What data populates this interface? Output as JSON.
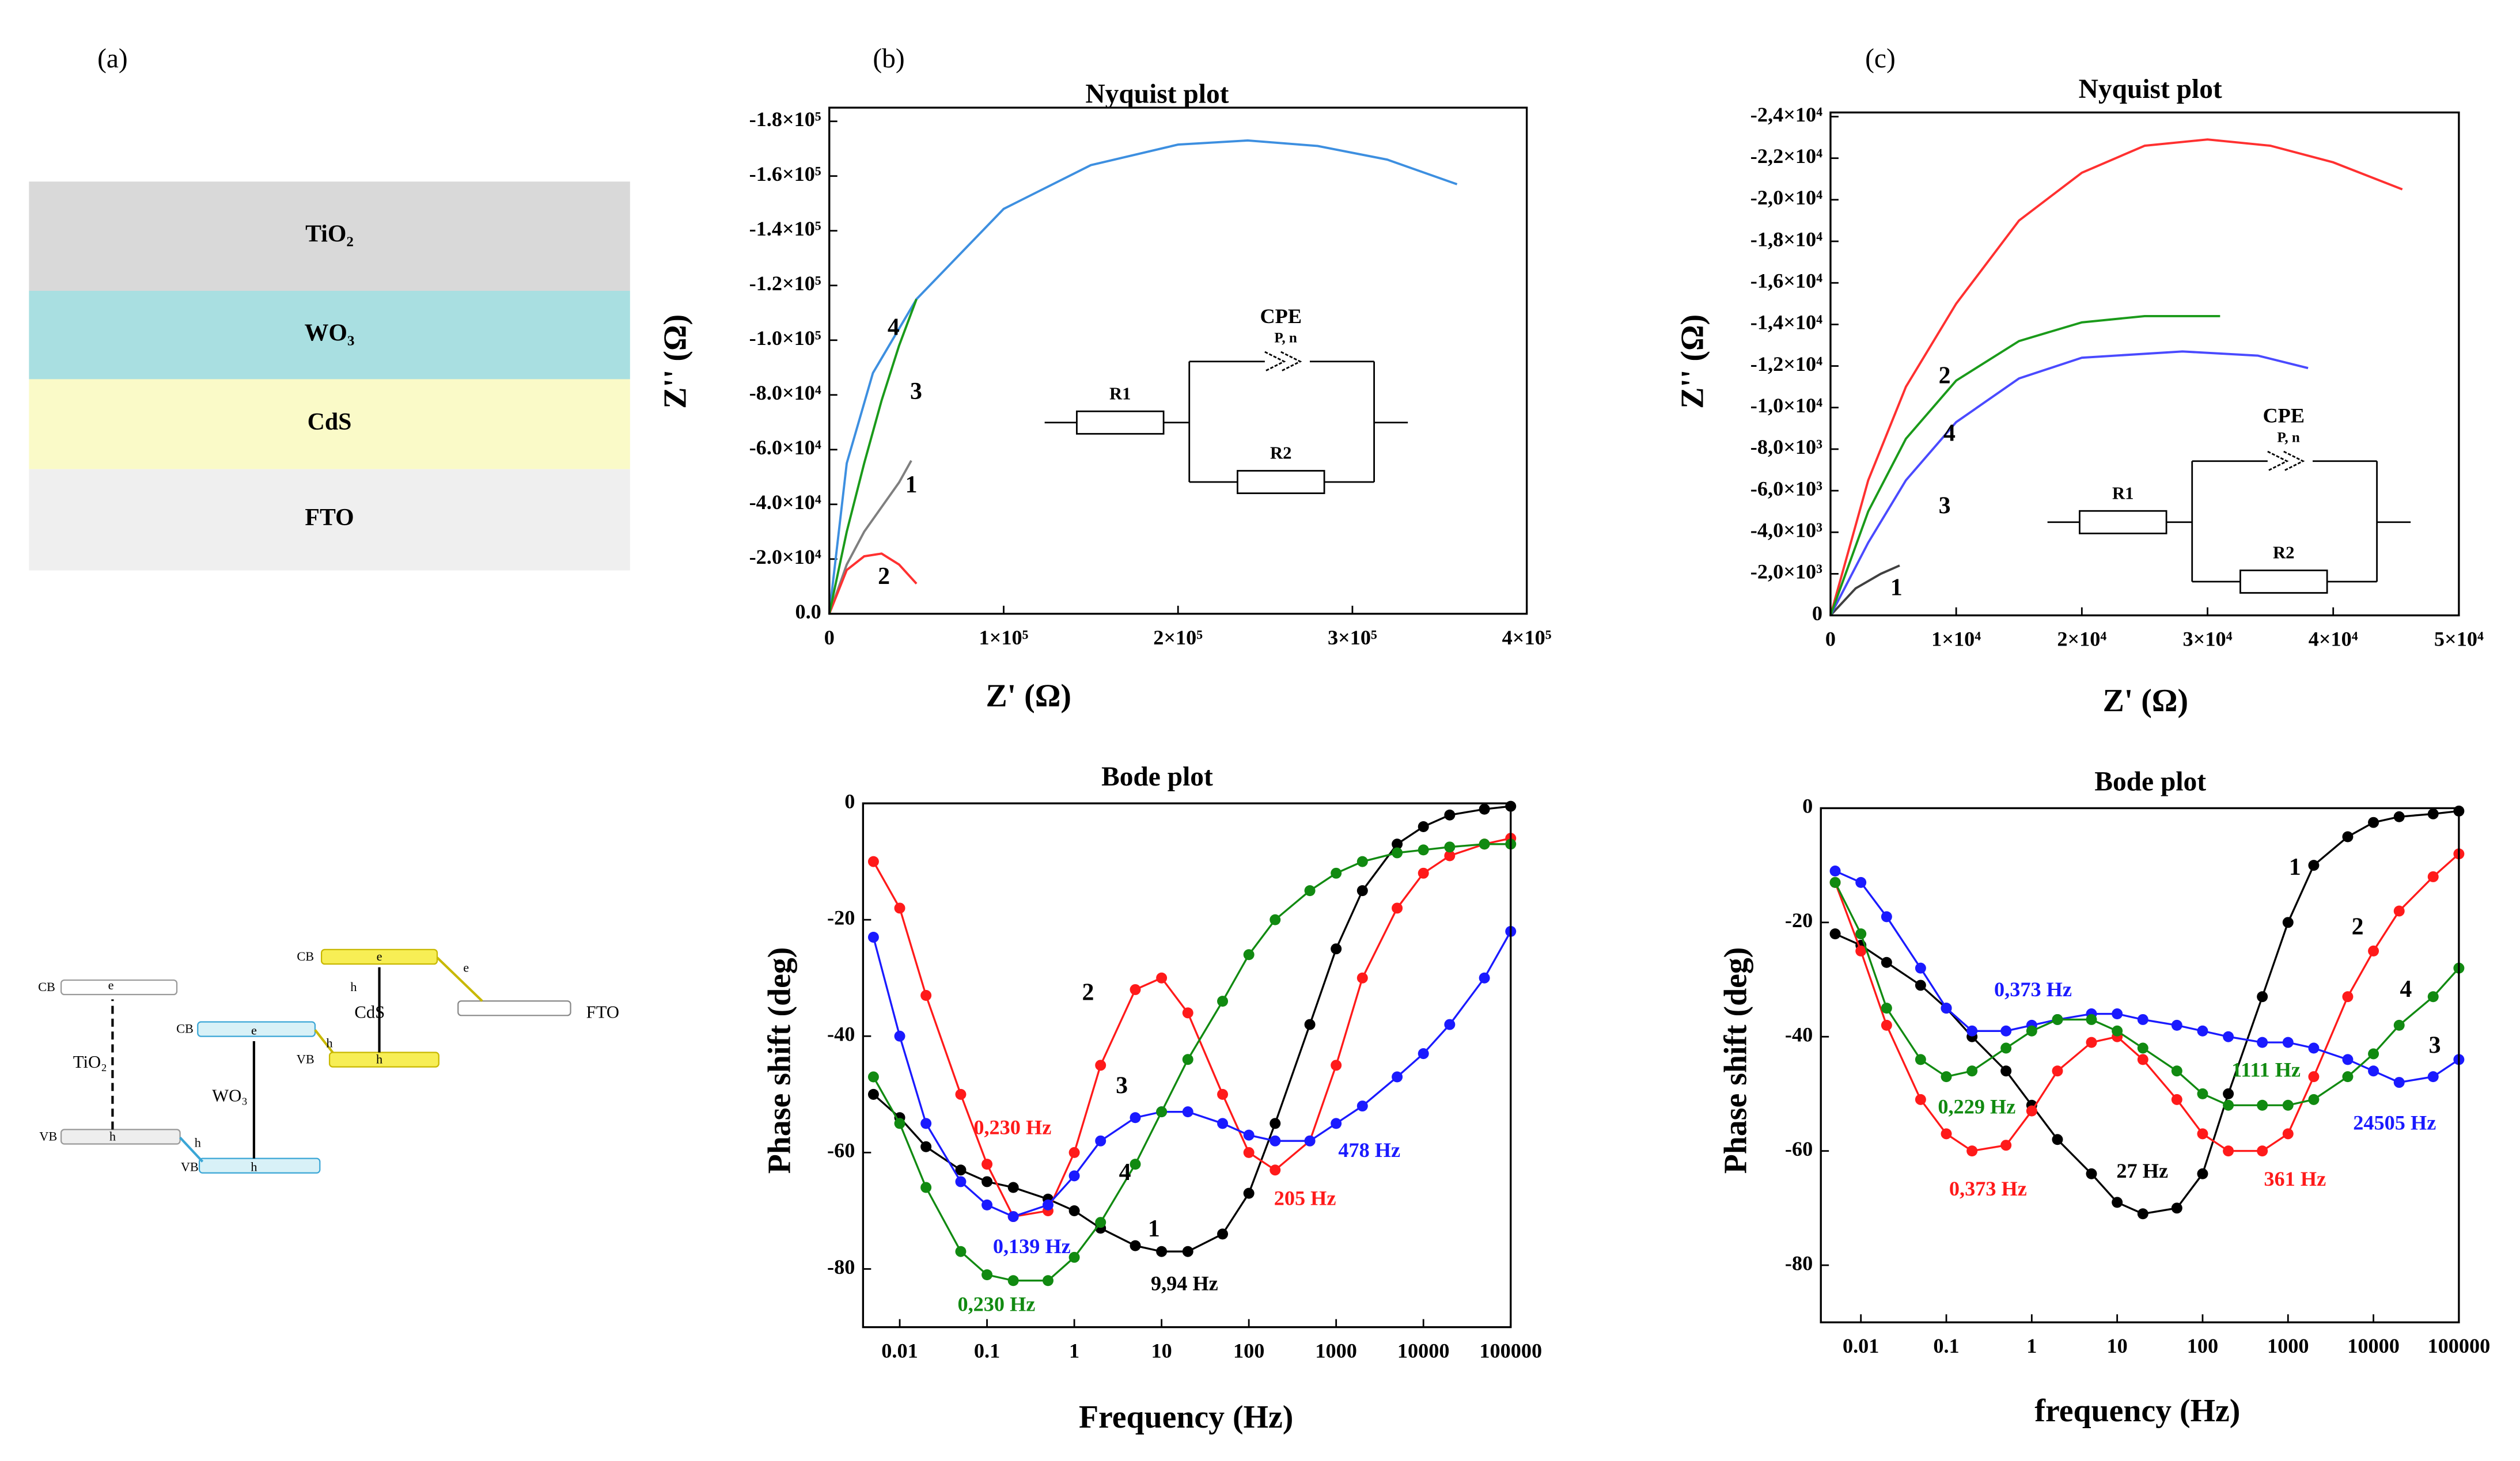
{
  "panel_labels": [
    "(a)",
    "(b)",
    "(c)"
  ],
  "layers": [
    "TiO₂",
    "WO₃",
    "CdS",
    "FTO"
  ],
  "band_diagram": {
    "labels": [
      "CB",
      "e",
      "VB",
      "h",
      "TiO₂",
      "CB",
      "e",
      "h",
      "VB",
      "h",
      "h",
      "WO₃",
      "CB",
      "e",
      "h",
      "VB",
      "h",
      "CdS",
      "e",
      "FTO"
    ]
  },
  "chart_data": [
    {
      "type": "line",
      "title": "Nyquist plot",
      "x_label": "Z' (Ω)",
      "y_label": "Z'' (Ω)",
      "xlim": [
        0,
        400000
      ],
      "ylim": [
        0,
        -185000
      ],
      "xticks": [
        0,
        {
          "value": 100000,
          "label": "1×10⁵"
        },
        {
          "value": 200000,
          "label": "2×10⁵"
        },
        {
          "value": 300000,
          "label": "3×10⁵"
        },
        {
          "value": 400000,
          "label": "4×10⁵"
        }
      ],
      "yticks": [
        {
          "value": 0,
          "label": "0.0"
        },
        {
          "value": -20000,
          "label": "-2.0×10⁴"
        },
        {
          "value": -40000,
          "label": "-4.0×10⁴"
        },
        {
          "value": -60000,
          "label": "-6.0×10⁴"
        },
        {
          "value": -80000,
          "label": "-8.0×10⁴"
        },
        {
          "value": -100000,
          "label": "-1.0×10⁵"
        },
        {
          "value": -120000,
          "label": "-1.2×10⁵"
        },
        {
          "value": -140000,
          "label": "-1.4×10⁵"
        },
        {
          "value": -160000,
          "label": "-1.6×10⁵"
        },
        {
          "value": -180000,
          "label": "-1.8×10⁵"
        }
      ],
      "circuit": [
        "CPE",
        "P, n",
        "R1",
        "R2"
      ],
      "series": [
        {
          "name": "1",
          "color": "#7f7f7f",
          "x": [
            0,
            10000,
            20000,
            30000,
            40000,
            47000
          ],
          "values": [
            0,
            -18000,
            -30000,
            -39000,
            -48000,
            -56000
          ]
        },
        {
          "name": "2",
          "color": "#ff3030",
          "x": [
            0,
            10000,
            20000,
            30000,
            40000,
            50000
          ],
          "values": [
            0,
            -16000,
            -21000,
            -22000,
            -18000,
            -11000
          ]
        },
        {
          "name": "3",
          "color": "#3d8fe0",
          "x": [
            0,
            10000,
            25000,
            50000,
            100000,
            150000,
            200000,
            240000,
            280000,
            320000,
            360000
          ],
          "values": [
            0,
            -55000,
            -88000,
            -115000,
            -148000,
            -164000,
            -171500,
            -173000,
            -171000,
            -166000,
            -157000
          ]
        },
        {
          "name": "4",
          "color": "#1a9a1a",
          "x": [
            0,
            10000,
            20000,
            30000,
            40000,
            50000
          ],
          "values": [
            0,
            -30000,
            -55000,
            -78000,
            -98000,
            -115000
          ]
        }
      ]
    },
    {
      "type": "line",
      "title": "Bode plot",
      "x_label": "Frequency (Hz)",
      "y_label": "Phase shift (deg)",
      "xscale": "log",
      "markers": true,
      "xlim": [
        0.0038,
        100000
      ],
      "ylim": [
        -90,
        0
      ],
      "xticks": [
        0.01,
        0.1,
        1,
        10,
        100,
        1000,
        10000,
        100000
      ],
      "yticks": [
        0,
        -20,
        -40,
        -60,
        -80
      ],
      "x": [
        0.005,
        0.01,
        0.02,
        0.05,
        0.1,
        0.2,
        0.5,
        1,
        2,
        5,
        10,
        20,
        50,
        100,
        200,
        500,
        1000,
        2000,
        5000,
        10000,
        20000,
        50000,
        100000
      ],
      "series": [
        {
          "name": "1",
          "color": "#000000",
          "values": [
            -50,
            -54,
            -59,
            -63,
            -65,
            -66,
            -68,
            -70,
            -73,
            -76,
            -77,
            -77,
            -74,
            -67,
            -55,
            -38,
            -25,
            -15,
            -7,
            -4,
            -2,
            -1,
            -0.5
          ]
        },
        {
          "name": "2",
          "color": "#ff1a1a",
          "values": [
            -10,
            -18,
            -33,
            -50,
            -62,
            -71,
            -70,
            -60,
            -45,
            -32,
            -30,
            -36,
            -50,
            -60,
            -63,
            -58,
            -45,
            -30,
            -18,
            -12,
            -9,
            -7,
            -6
          ]
        },
        {
          "name": "3",
          "color": "#1a1aff",
          "values": [
            -23,
            -40,
            -55,
            -65,
            -69,
            -71,
            -69,
            -64,
            -58,
            -54,
            -53,
            -53,
            -55,
            -57,
            -58,
            -58,
            -55,
            -52,
            -47,
            -43,
            -38,
            -30,
            -22
          ]
        },
        {
          "name": "4",
          "color": "#118a11",
          "values": [
            -47,
            -55,
            -66,
            -77,
            -81,
            -82,
            -82,
            -78,
            -72,
            -62,
            -53,
            -44,
            -34,
            -26,
            -20,
            -15,
            -12,
            -10,
            -8.5,
            -8,
            -7.5,
            -7,
            -7
          ]
        }
      ],
      "annotations": [
        {
          "text": "0,230 Hz",
          "color": "#ff1a1a"
        },
        {
          "text": "0,139 Hz",
          "color": "#1a1aff"
        },
        {
          "text": "0,230 Hz",
          "color": "#118a11"
        },
        {
          "text": "9,94 Hz",
          "color": "#000000"
        },
        {
          "text": "205 Hz",
          "color": "#ff1a1a"
        },
        {
          "text": "478 Hz",
          "color": "#1a1aff"
        }
      ]
    },
    {
      "type": "line",
      "title": "Nyquist plot",
      "x_label": "Z' (Ω)",
      "y_label": "Z'' (Ω)",
      "xlim": [
        0,
        50000
      ],
      "ylim": [
        0,
        -24200
      ],
      "xticks": [
        0,
        {
          "value": 10000,
          "label": "1×10⁴"
        },
        {
          "value": 20000,
          "label": "2×10⁴"
        },
        {
          "value": 30000,
          "label": "3×10⁴"
        },
        {
          "value": 40000,
          "label": "4×10⁴"
        },
        {
          "value": 50000,
          "label": "5×10⁴"
        }
      ],
      "yticks": [
        0,
        {
          "value": -2000,
          "label": "-2,0×10³"
        },
        {
          "value": -4000,
          "label": "-4,0×10³"
        },
        {
          "value": -6000,
          "label": "-6,0×10³"
        },
        {
          "value": -8000,
          "label": "-8,0×10³"
        },
        {
          "value": -10000,
          "label": "-1,0×10⁴"
        },
        {
          "value": -12000,
          "label": "-1,2×10⁴"
        },
        {
          "value": -14000,
          "label": "-1,4×10⁴"
        },
        {
          "value": -16000,
          "label": "-1,6×10⁴"
        },
        {
          "value": -18000,
          "label": "-1,8×10⁴"
        },
        {
          "value": -20000,
          "label": "-2,0×10⁴"
        },
        {
          "value": -22000,
          "label": "-2,2×10⁴"
        },
        {
          "value": -24000,
          "label": "-2,4×10⁴"
        }
      ],
      "circuit": [
        "CPE",
        "P, n",
        "R1",
        "R2"
      ],
      "series": [
        {
          "name": "1",
          "color": "#404040",
          "x": [
            0,
            2000,
            4000,
            5500
          ],
          "values": [
            0,
            -1300,
            -2000,
            -2400
          ]
        },
        {
          "name": "2",
          "color": "#ff3030",
          "x": [
            0,
            3000,
            6000,
            10000,
            15000,
            20000,
            25000,
            30000,
            35000,
            40000,
            45500
          ],
          "values": [
            0,
            -6500,
            -11000,
            -15000,
            -19000,
            -21300,
            -22600,
            -22900,
            -22600,
            -21800,
            -20500
          ]
        },
        {
          "name": "3",
          "color": "#4a4aff",
          "x": [
            0,
            3000,
            6000,
            10000,
            15000,
            20000,
            28000,
            34000,
            38000
          ],
          "values": [
            0,
            -3500,
            -6500,
            -9300,
            -11400,
            -12400,
            -12700,
            -12500,
            -11900
          ]
        },
        {
          "name": "4",
          "color": "#1a9a1a",
          "x": [
            0,
            3000,
            6000,
            10000,
            15000,
            20000,
            25000,
            31000
          ],
          "values": [
            0,
            -5000,
            -8500,
            -11300,
            -13200,
            -14100,
            -14400,
            -14400
          ]
        }
      ]
    },
    {
      "type": "line",
      "title": "Bode plot",
      "x_label": "frequency (Hz)",
      "y_label": "Phase shift (deg)",
      "xscale": "log",
      "markers": true,
      "xlim": [
        0.0034,
        100000
      ],
      "ylim": [
        -90,
        0
      ],
      "xticks": [
        0.01,
        0.1,
        1,
        10,
        100,
        1000,
        10000,
        100000
      ],
      "yticks": [
        0,
        -20,
        -40,
        -60,
        -80
      ],
      "x": [
        0.005,
        0.01,
        0.02,
        0.05,
        0.1,
        0.2,
        0.5,
        1,
        2,
        5,
        10,
        20,
        50,
        100,
        200,
        500,
        1000,
        2000,
        5000,
        10000,
        20000,
        50000,
        100000
      ],
      "series": [
        {
          "name": "1",
          "color": "#000000",
          "values": [
            -22,
            -24,
            -27,
            -31,
            -35,
            -40,
            -46,
            -52,
            -58,
            -64,
            -69,
            -71,
            -70,
            -64,
            -50,
            -33,
            -20,
            -10,
            -5,
            -2.5,
            -1.5,
            -1,
            -0.5
          ]
        },
        {
          "name": "2",
          "color": "#ff1a1a",
          "values": [
            -13,
            -25,
            -38,
            -51,
            -57,
            -60,
            -59,
            -53,
            -46,
            -41,
            -40,
            -44,
            -51,
            -57,
            -60,
            -60,
            -57,
            -47,
            -33,
            -25,
            -18,
            -12,
            -8
          ]
        },
        {
          "name": "3",
          "color": "#1a1aff",
          "values": [
            -11,
            -13,
            -19,
            -28,
            -35,
            -39,
            -39,
            -38,
            -37,
            -36,
            -36,
            -37,
            -38,
            -39,
            -40,
            -41,
            -41,
            -42,
            -44,
            -46,
            -48,
            -47,
            -44
          ]
        },
        {
          "name": "4",
          "color": "#118a11",
          "values": [
            -13,
            -22,
            -35,
            -44,
            -47,
            -46,
            -42,
            -39,
            -37,
            -37,
            -39,
            -42,
            -46,
            -50,
            -52,
            -52,
            -52,
            -51,
            -47,
            -43,
            -38,
            -33,
            -28
          ]
        }
      ],
      "annotations": [
        {
          "text": "0,373 Hz",
          "color": "#1a1aff"
        },
        {
          "text": "1111 Hz",
          "color": "#118a11"
        },
        {
          "text": "0,229 Hz",
          "color": "#118a11"
        },
        {
          "text": "24505 Hz",
          "color": "#1a1aff"
        },
        {
          "text": "0,373 Hz",
          "color": "#ff1a1a"
        },
        {
          "text": "27 Hz",
          "color": "#000000"
        },
        {
          "text": "361 Hz",
          "color": "#ff1a1a"
        }
      ]
    }
  ]
}
